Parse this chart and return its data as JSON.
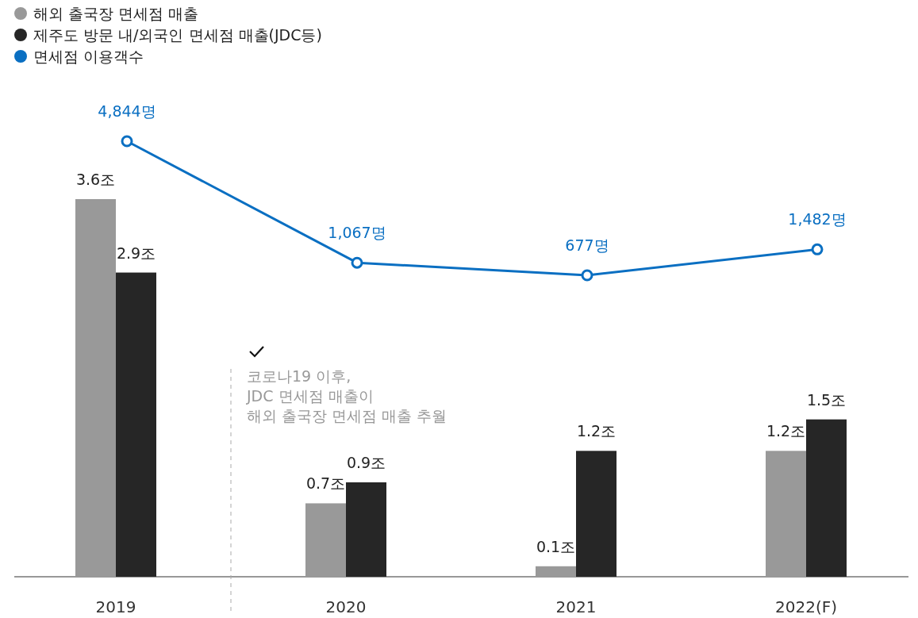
{
  "chart_data": {
    "type": "bar",
    "categories": [
      "2019",
      "2020",
      "2021",
      "2022(F)"
    ],
    "series": [
      {
        "name": "해외 출국장 면세점 매출",
        "color": "#999999",
        "values": [
          3.6,
          0.7,
          0.1,
          1.2
        ],
        "value_labels": [
          "3.6조",
          "0.7조",
          "0.1조",
          "1.2조"
        ]
      },
      {
        "name": "제주도 방문 내/외국인 면세점 매출(JDC등)",
        "color": "#262626",
        "values": [
          2.9,
          0.9,
          1.2,
          1.5
        ],
        "value_labels": [
          "2.9조",
          "0.9조",
          "1.2조",
          "1.5조"
        ]
      },
      {
        "name": "면세점 이용객수",
        "type": "line",
        "axis": "y2",
        "color": "#0a6fc2",
        "marker": "circle",
        "values": [
          4844,
          1067,
          677,
          1482
        ],
        "value_labels": [
          "4,844명",
          "1,067명",
          "677명",
          "1,482명"
        ]
      }
    ],
    "tick_labels": "x",
    "legend": "top left",
    "annotations": [
      "코로나19 이후,\nJDC 면세점 매출이\n해외 출국장 면세점 매출 추월"
    ]
  }
}
